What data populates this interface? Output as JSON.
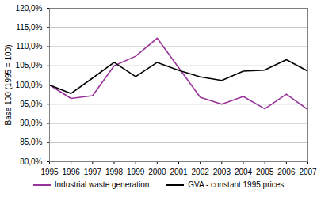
{
  "chart_data": {
    "type": "line",
    "y_label": "Base 100 (1995 = 100)",
    "x": [
      1995,
      1996,
      1997,
      1998,
      1999,
      2000,
      2001,
      2002,
      2003,
      2004,
      2005,
      2006,
      2007
    ],
    "series": [
      {
        "name": "Industrial waste generation",
        "color": "#993399",
        "values": [
          100.0,
          96.5,
          97.2,
          105.0,
          107.5,
          112.2,
          104.5,
          96.8,
          95.0,
          97.0,
          93.8,
          97.6,
          93.6
        ]
      },
      {
        "name": "GVA - constant 1995 prices",
        "color": "#000000",
        "values": [
          100.0,
          97.8,
          101.8,
          105.9,
          102.2,
          105.9,
          103.8,
          102.1,
          101.2,
          103.6,
          103.9,
          106.6,
          103.6
        ]
      }
    ],
    "xlim": [
      1995,
      2007
    ],
    "xticks": [
      1995,
      1996,
      1997,
      1998,
      1999,
      2000,
      2001,
      2002,
      2003,
      2004,
      2005,
      2006,
      2007
    ],
    "ylim": [
      80,
      120
    ],
    "yticks": [
      {
        "value": 80,
        "label": "80,0%"
      },
      {
        "value": 85,
        "label": "85,0%"
      },
      {
        "value": 90,
        "label": "90,0%"
      },
      {
        "value": 95,
        "label": "95,0%"
      },
      {
        "value": 100,
        "label": "100,0%"
      },
      {
        "value": 105,
        "label": "105,0%"
      },
      {
        "value": 110,
        "label": "110,0%"
      },
      {
        "value": 115,
        "label": "115,0%"
      },
      {
        "value": 120,
        "label": "120,0%"
      }
    ],
    "grid": true,
    "legend": "bottom"
  }
}
